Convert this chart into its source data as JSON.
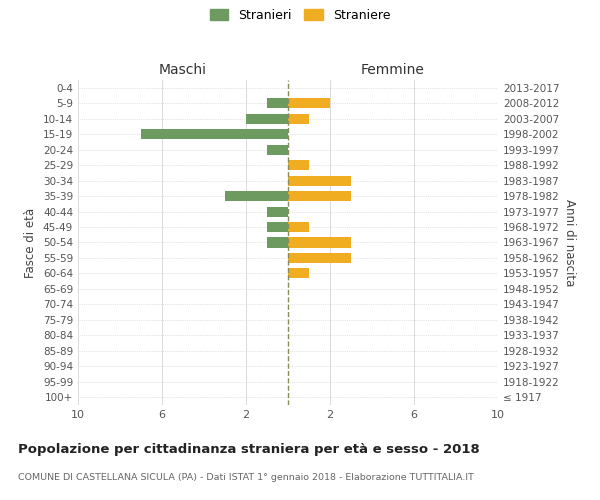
{
  "age_groups": [
    "100+",
    "95-99",
    "90-94",
    "85-89",
    "80-84",
    "75-79",
    "70-74",
    "65-69",
    "60-64",
    "55-59",
    "50-54",
    "45-49",
    "40-44",
    "35-39",
    "30-34",
    "25-29",
    "20-24",
    "15-19",
    "10-14",
    "5-9",
    "0-4"
  ],
  "birth_years": [
    "≤ 1917",
    "1918-1922",
    "1923-1927",
    "1928-1932",
    "1933-1937",
    "1938-1942",
    "1943-1947",
    "1948-1952",
    "1953-1957",
    "1958-1962",
    "1963-1967",
    "1968-1972",
    "1973-1977",
    "1978-1982",
    "1983-1987",
    "1988-1992",
    "1993-1997",
    "1998-2002",
    "2003-2007",
    "2008-2012",
    "2013-2017"
  ],
  "males": [
    0,
    0,
    0,
    0,
    0,
    0,
    0,
    0,
    0,
    0,
    1,
    1,
    1,
    3,
    0,
    0,
    1,
    7,
    2,
    1,
    0
  ],
  "females": [
    0,
    0,
    0,
    0,
    0,
    0,
    0,
    0,
    1,
    3,
    3,
    1,
    0,
    3,
    3,
    1,
    0,
    0,
    1,
    2,
    0
  ],
  "male_color": "#6d9b5f",
  "female_color": "#f0ad22",
  "center_line_color": "#8a8a5a",
  "grid_color": "#cccccc",
  "bg_color": "#ffffff",
  "title": "Popolazione per cittadinanza straniera per età e sesso - 2018",
  "subtitle": "COMUNE DI CASTELLANA SICULA (PA) - Dati ISTAT 1° gennaio 2018 - Elaborazione TUTTITALIA.IT",
  "ylabel_left": "Fasce di età",
  "ylabel_right": "Anni di nascita",
  "xlabel_left": "Maschi",
  "xlabel_right": "Femmine",
  "legend_males": "Stranieri",
  "legend_females": "Straniere",
  "xlim": 10
}
